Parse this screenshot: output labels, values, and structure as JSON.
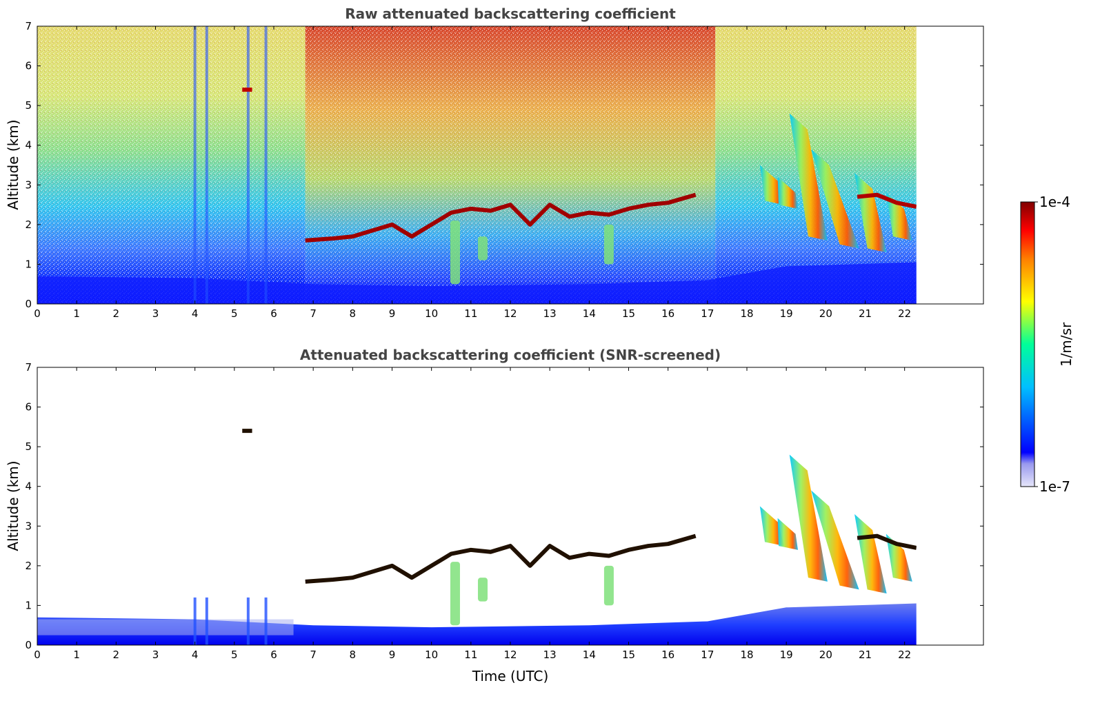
{
  "chart_data": [
    {
      "type": "heatmap",
      "title": "Raw attenuated backscattering coefficient",
      "xlabel": "",
      "ylabel": "Altitude (km)",
      "xlim": [
        0,
        24
      ],
      "ylim": [
        0,
        7
      ],
      "x_ticks": [
        0,
        1,
        2,
        3,
        4,
        5,
        6,
        7,
        8,
        9,
        10,
        11,
        12,
        13,
        14,
        15,
        16,
        17,
        18,
        19,
        20,
        21,
        22
      ],
      "y_ticks": [
        0,
        1,
        2,
        3,
        4,
        5,
        6,
        7
      ],
      "data_end_time": 22.3,
      "grid": false
    },
    {
      "type": "heatmap",
      "title": "Attenuated backscattering coefficient (SNR-screened)",
      "xlabel": "Time (UTC)",
      "ylabel": "Altitude (km)",
      "xlim": [
        0,
        24
      ],
      "ylim": [
        0,
        7
      ],
      "x_ticks": [
        0,
        1,
        2,
        3,
        4,
        5,
        6,
        7,
        8,
        9,
        10,
        11,
        12,
        13,
        14,
        15,
        16,
        17,
        18,
        19,
        20,
        21,
        22
      ],
      "y_ticks": [
        0,
        1,
        2,
        3,
        4,
        5,
        6,
        7
      ],
      "data_end_time": 22.3,
      "grid": false
    }
  ],
  "colorbar": {
    "label": "1/m/sr",
    "max_label": "1e-4",
    "min_label": "1e-7",
    "scale": "log",
    "colormap": [
      "#e6e6fa",
      "#0000ff",
      "#00bfff",
      "#00ff99",
      "#ffff00",
      "#ff7f00",
      "#ff0000",
      "#800000"
    ]
  },
  "features": {
    "cloud_layer": [
      [
        6.8,
        1.6
      ],
      [
        7.5,
        1.65
      ],
      [
        8.0,
        1.7
      ],
      [
        8.5,
        1.85
      ],
      [
        9.0,
        2.0
      ],
      [
        9.5,
        1.7
      ],
      [
        10.0,
        2.0
      ],
      [
        10.5,
        2.3
      ],
      [
        11.0,
        2.4
      ],
      [
        11.5,
        2.35
      ],
      [
        12.0,
        2.5
      ],
      [
        12.5,
        2.0
      ],
      [
        13.0,
        2.5
      ],
      [
        13.5,
        2.2
      ],
      [
        14.0,
        2.3
      ],
      [
        14.5,
        2.25
      ],
      [
        15.0,
        2.4
      ],
      [
        15.5,
        2.5
      ],
      [
        16.0,
        2.55
      ],
      [
        16.7,
        2.75
      ]
    ],
    "late_cloud_layer": [
      [
        20.8,
        2.7
      ],
      [
        21.3,
        2.75
      ],
      [
        21.8,
        2.55
      ],
      [
        22.3,
        2.45
      ]
    ],
    "fall_streaks": [
      {
        "t_top": 19.15,
        "h_top": 4.8,
        "t_bottom": 19.8,
        "h_bottom": 1.6
      },
      {
        "t_top": 19.7,
        "h_top": 3.9,
        "t_bottom": 20.6,
        "h_bottom": 1.4
      },
      {
        "t_top": 20.8,
        "h_top": 3.3,
        "t_bottom": 21.3,
        "h_bottom": 1.3
      },
      {
        "t_top": 21.6,
        "h_top": 2.8,
        "t_bottom": 21.95,
        "h_bottom": 1.6
      },
      {
        "t_top": 18.4,
        "h_top": 3.5,
        "t_bottom": 18.7,
        "h_bottom": 2.5
      },
      {
        "t_top": 18.85,
        "h_top": 3.2,
        "t_bottom": 19.05,
        "h_bottom": 2.4
      }
    ],
    "elevated_aerosol_streaks": [
      {
        "t": 10.6,
        "h_top": 2.1,
        "h_bottom": 0.5
      },
      {
        "t": 11.3,
        "h_top": 1.7,
        "h_bottom": 1.1
      },
      {
        "t": 14.5,
        "h_top": 2.0,
        "h_bottom": 1.0
      }
    ],
    "boundary_layer_top": [
      [
        0,
        0.7
      ],
      [
        4,
        0.65
      ],
      [
        7,
        0.5
      ],
      [
        10,
        0.45
      ],
      [
        14,
        0.5
      ],
      [
        17,
        0.6
      ],
      [
        19,
        0.95
      ],
      [
        22.3,
        1.05
      ]
    ],
    "vertical_profiles": [
      4.0,
      4.3,
      5.35,
      5.8
    ],
    "small_patch": {
      "t0": 5.2,
      "t1": 5.45,
      "h": 5.4
    }
  }
}
